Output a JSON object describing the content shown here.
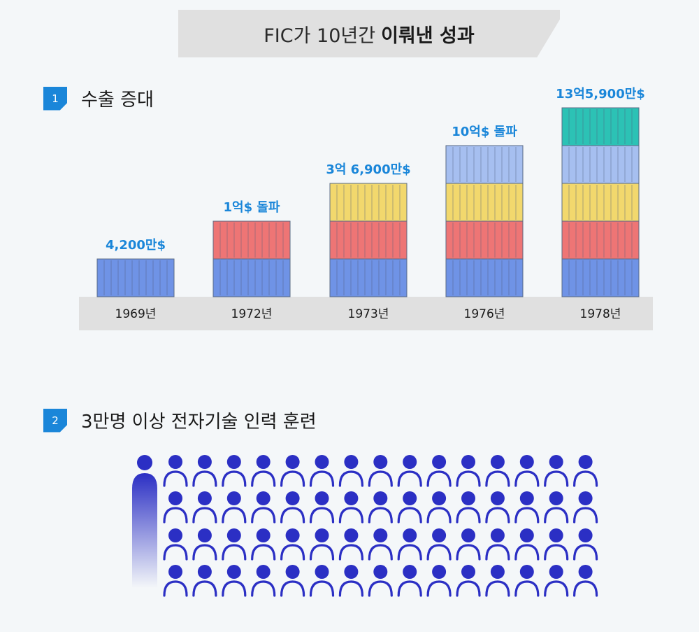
{
  "title": {
    "normal": "FIC가 10년간",
    "bold": "이뤄낸 성과"
  },
  "section1": {
    "number": "1",
    "title": "수출 증대"
  },
  "section2": {
    "number": "2",
    "title": "3만명 이상 전자기술 인력 훈련"
  },
  "colors": {
    "accent": "#1a86d9",
    "people": "#2b2fc4",
    "base_band": "#e0e0e0",
    "layer_colors": [
      "#6f93e6",
      "#ee7575",
      "#f2d86d",
      "#a6bff0",
      "#2cc2b5"
    ]
  },
  "chart_data": {
    "type": "bar",
    "categories": [
      "1969년",
      "1972년",
      "1973년",
      "1976년",
      "1978년"
    ],
    "values": [
      4200,
      10000,
      36900,
      100000,
      135900
    ],
    "value_unit": "만$",
    "stack_layers": [
      1,
      2,
      3,
      4,
      5
    ],
    "labels": [
      "4,200만$",
      "1억$ 돌파",
      "3억 6,900만$",
      "10억$ 돌파",
      "13억5,900만$"
    ]
  },
  "people_grid": {
    "rows": 4,
    "icons_per_row": 15,
    "leading_figure": "highlight-person-icon"
  }
}
